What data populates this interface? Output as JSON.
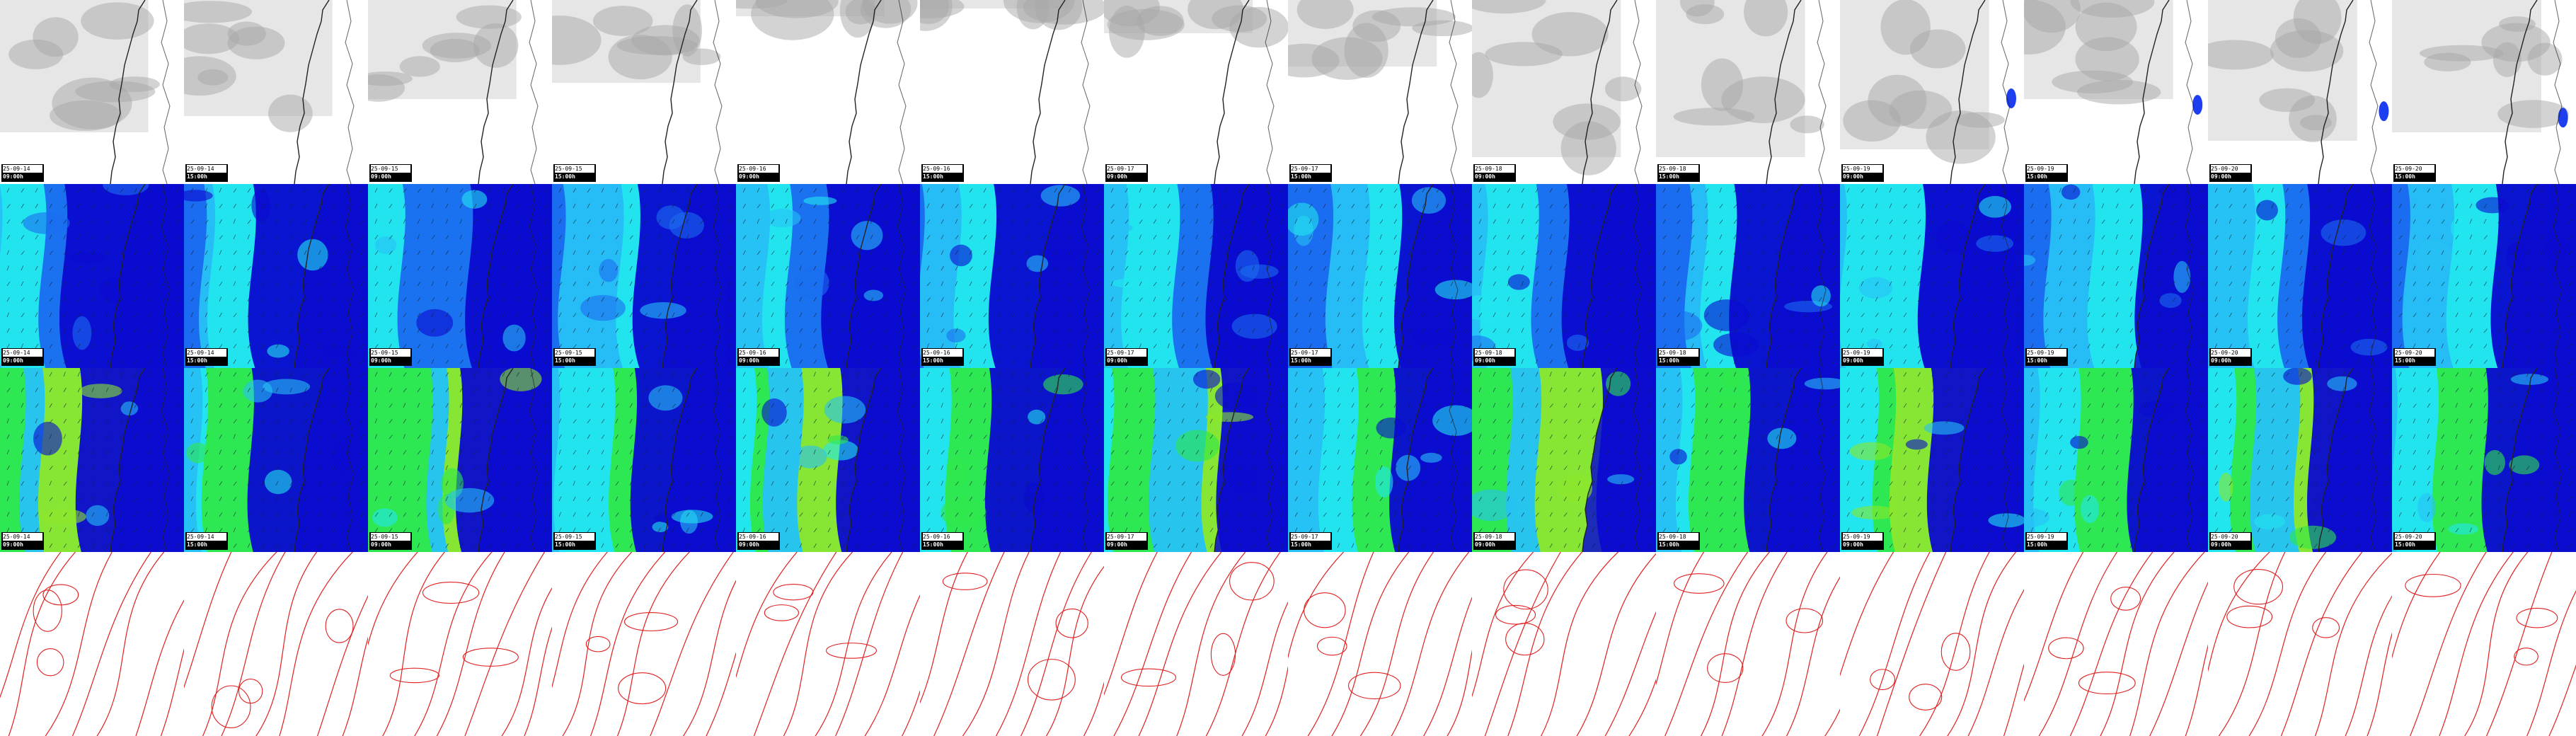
{
  "map_rows": [
    {
      "id": "cloud-cover",
      "scheme": "gray"
    },
    {
      "id": "wind-low",
      "scheme": "blue"
    },
    {
      "id": "wind-high",
      "scheme": "blue-green"
    },
    {
      "id": "pressure",
      "scheme": "isobars"
    }
  ],
  "panels": [
    {
      "date": "25-09-14",
      "time": "09:00h"
    },
    {
      "date": "25-09-14",
      "time": "15:00h"
    },
    {
      "date": "25-09-15",
      "time": "09:00h"
    },
    {
      "date": "25-09-15",
      "time": "15:00h"
    },
    {
      "date": "25-09-16",
      "time": "09:00h"
    },
    {
      "date": "25-09-16",
      "time": "15:00h"
    },
    {
      "date": "25-09-17",
      "time": "09:00h"
    },
    {
      "date": "25-09-17",
      "time": "15:00h"
    },
    {
      "date": "25-09-18",
      "time": "09:00h"
    },
    {
      "date": "25-09-18",
      "time": "15:00h"
    },
    {
      "date": "25-09-19",
      "time": "09:00h"
    },
    {
      "date": "25-09-19",
      "time": "15:00h"
    },
    {
      "date": "25-09-20",
      "time": "09:00h"
    },
    {
      "date": "25-09-20",
      "time": "15:00h"
    }
  ],
  "colors": {
    "coastline": "#222222",
    "isobar": "#e02020",
    "wind_dark": "#0a0ad0",
    "wind_mid": "#1a6cf0",
    "wind_light": "#27c2f5",
    "wind_cyan": "#22e6ee",
    "wind_green": "#2ee84a",
    "wind_lime": "#8ce82a",
    "cloud_light": "#e6e6e6",
    "cloud_dark": "#a8a8a8"
  }
}
